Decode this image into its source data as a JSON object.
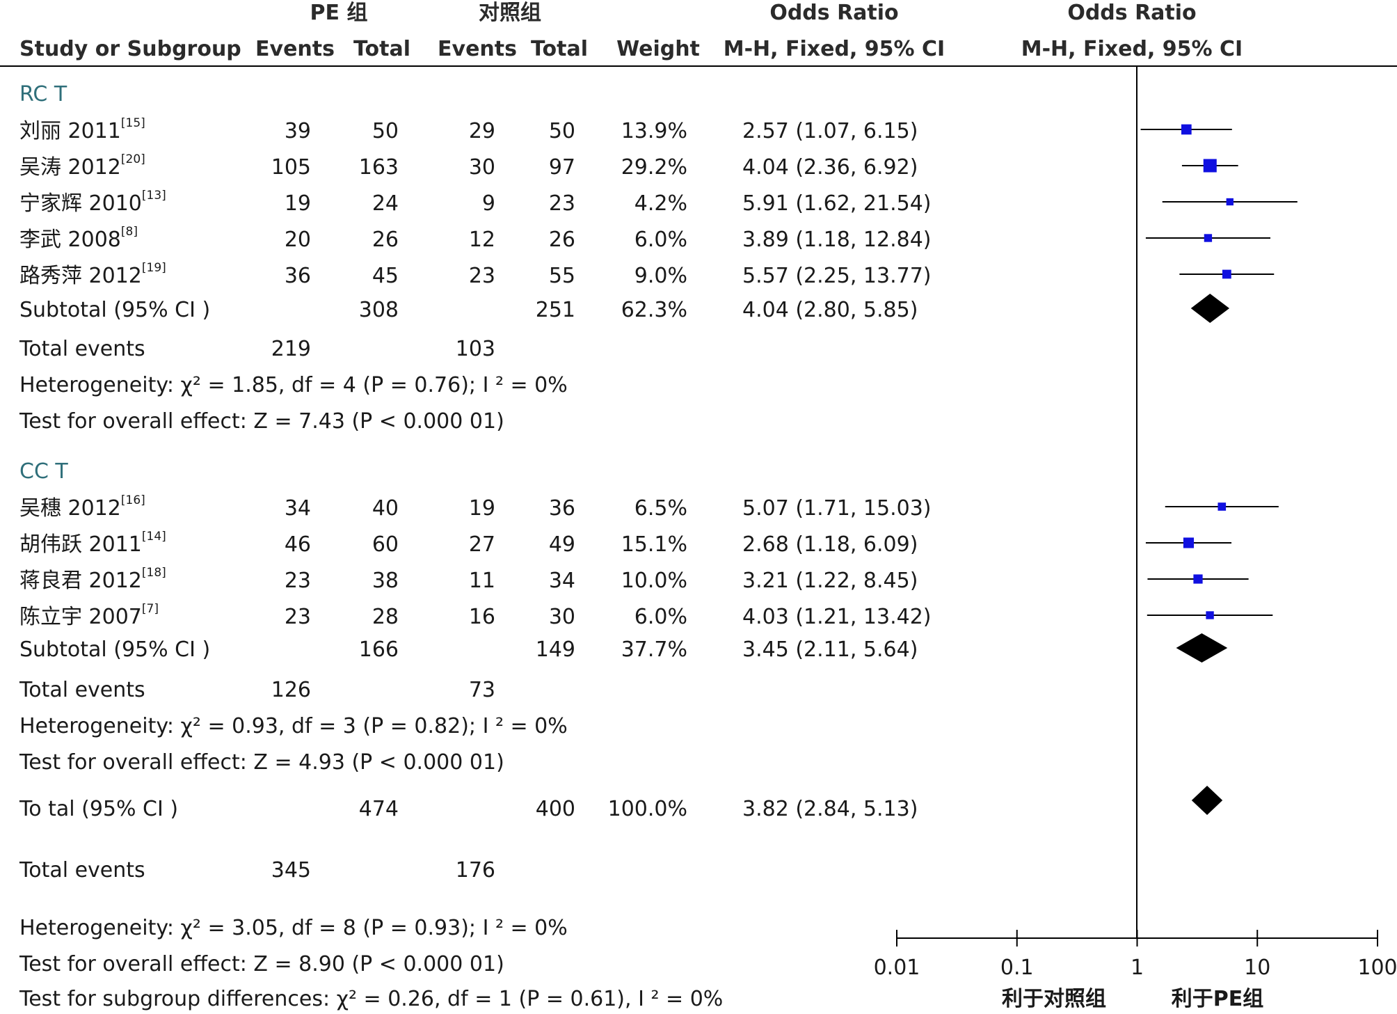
{
  "header": {
    "group_exp": "PE 组",
    "group_ctrl": "对照组",
    "or_title_left": "Odds Ratio",
    "or_title_right": "Odds Ratio",
    "col_study": "Study or Subgroup",
    "col_events_exp": "Events",
    "col_total_exp": "Total",
    "col_events_ctrl": "Events",
    "col_total_ctrl": "Total",
    "col_weight": "Weight",
    "col_method_left": "M-H, Fixed, 95% CI",
    "col_method_right": "M-H, Fixed, 95% CI"
  },
  "colors": {
    "text": "#1a1a1a",
    "subtotal_text": "#2f6f7a",
    "marker": "#1010e0",
    "diamond": "#000000"
  },
  "chart_data": {
    "type": "forest",
    "scale": "log",
    "xlim": [
      0.01,
      100
    ],
    "ticks": [
      {
        "value": 0.01,
        "label": "0.01"
      },
      {
        "value": 0.1,
        "label": "0.1"
      },
      {
        "value": 1,
        "label": "1"
      },
      {
        "value": 10,
        "label": "10"
      },
      {
        "value": 100,
        "label": "100"
      }
    ],
    "favours_left": "利于对照组",
    "favours_right": "利于PE组",
    "subgroups": [
      {
        "name": "RC T",
        "studies": [
          {
            "name": "刘丽 2011",
            "ref": "[15]",
            "exp_events": "39",
            "exp_total": "50",
            "ctrl_events": "29",
            "ctrl_total": "50",
            "weight": "13.9%",
            "ci_text": "2.57 (1.07, 6.15)",
            "or": 2.57,
            "lo": 1.07,
            "hi": 6.15,
            "w": 13.9
          },
          {
            "name": "吴涛 2012",
            "ref": "[20]",
            "exp_events": "105",
            "exp_total": "163",
            "ctrl_events": "30",
            "ctrl_total": "97",
            "weight": "29.2%",
            "ci_text": "4.04 (2.36, 6.92)",
            "or": 4.04,
            "lo": 2.36,
            "hi": 6.92,
            "w": 29.2
          },
          {
            "name": "宁家辉 2010",
            "ref": "[13]",
            "exp_events": "19",
            "exp_total": "24",
            "ctrl_events": "9",
            "ctrl_total": "23",
            "weight": "4.2%",
            "ci_text": "5.91 (1.62, 21.54)",
            "or": 5.91,
            "lo": 1.62,
            "hi": 21.54,
            "w": 4.2
          },
          {
            "name": "李武 2008",
            "ref": "[8]",
            "exp_events": "20",
            "exp_total": "26",
            "ctrl_events": "12",
            "ctrl_total": "26",
            "weight": "6.0%",
            "ci_text": "3.89 (1.18, 12.84)",
            "or": 3.89,
            "lo": 1.18,
            "hi": 12.84,
            "w": 6.0
          },
          {
            "name": "路秀萍 2012",
            "ref": "[19]",
            "exp_events": "36",
            "exp_total": "45",
            "ctrl_events": "23",
            "ctrl_total": "55",
            "weight": "9.0%",
            "ci_text": "5.57 (2.25, 13.77)",
            "or": 5.57,
            "lo": 2.25,
            "hi": 13.77,
            "w": 9.0
          }
        ],
        "subtotal": {
          "label": "Subtotal (95% CI )",
          "exp_total": "308",
          "ctrl_total": "251",
          "weight": "62.3%",
          "ci_text": "4.04 (2.80, 5.85)",
          "or": 4.04,
          "lo": 2.8,
          "hi": 5.85
        },
        "total_events": {
          "label": "Total events",
          "exp": "219",
          "ctrl": "103"
        },
        "heterogeneity": "Heterogeneity:  χ² = 1.85, df = 4 (P = 0.76); I ² = 0%",
        "overall": "Test for overall effect: Z = 7.43 (P < 0.000 01)"
      },
      {
        "name": "CC T",
        "studies": [
          {
            "name": "吴穗 2012",
            "ref": "[16]",
            "exp_events": "34",
            "exp_total": "40",
            "ctrl_events": "19",
            "ctrl_total": "36",
            "weight": "6.5%",
            "ci_text": "5.07 (1.71, 15.03)",
            "or": 5.07,
            "lo": 1.71,
            "hi": 15.03,
            "w": 6.5
          },
          {
            "name": "胡伟跃 2011",
            "ref": "[14]",
            "exp_events": "46",
            "exp_total": "60",
            "ctrl_events": "27",
            "ctrl_total": "49",
            "weight": "15.1%",
            "ci_text": "2.68 (1.18, 6.09)",
            "or": 2.68,
            "lo": 1.18,
            "hi": 6.09,
            "w": 15.1
          },
          {
            "name": "蒋良君 2012",
            "ref": "[18]",
            "exp_events": "23",
            "exp_total": "38",
            "ctrl_events": "11",
            "ctrl_total": "34",
            "weight": "10.0%",
            "ci_text": "3.21 (1.22, 8.45)",
            "or": 3.21,
            "lo": 1.22,
            "hi": 8.45,
            "w": 10.0
          },
          {
            "name": "陈立宇 2007",
            "ref": "[7]",
            "exp_events": "23",
            "exp_total": "28",
            "ctrl_events": "16",
            "ctrl_total": "30",
            "weight": "6.0%",
            "ci_text": "4.03 (1.21, 13.42)",
            "or": 4.03,
            "lo": 1.21,
            "hi": 13.42,
            "w": 6.0
          }
        ],
        "subtotal": {
          "label": "Subtotal (95% CI )",
          "exp_total": "166",
          "ctrl_total": "149",
          "weight": "37.7%",
          "ci_text": "3.45 (2.11, 5.64)",
          "or": 3.45,
          "lo": 2.11,
          "hi": 5.64
        },
        "total_events": {
          "label": "Total events",
          "exp": "126",
          "ctrl": "73"
        },
        "heterogeneity": "Heterogeneity:  χ² = 0.93, df = 3 (P = 0.82); I ² = 0%",
        "overall": "Test for overall effect: Z = 4.93 (P < 0.000 01)"
      }
    ],
    "total": {
      "label": "To tal (95% CI )",
      "exp_total": "474",
      "ctrl_total": "400",
      "weight": "100.0%",
      "ci_text": "3.82 (2.84, 5.13)",
      "or": 3.82,
      "lo": 2.84,
      "hi": 5.13
    },
    "total_events": {
      "label": "Total events",
      "exp": "345",
      "ctrl": "176"
    },
    "heterogeneity": "Heterogeneity:  χ² = 3.05, df = 8 (P = 0.93); I ² = 0%",
    "overall": "Test for overall effect: Z = 8.90 (P < 0.000 01)",
    "subgroup_diff": "Test for subgroup differences:  χ² = 0.26, df = 1 (P = 0.61), I ² = 0%"
  }
}
